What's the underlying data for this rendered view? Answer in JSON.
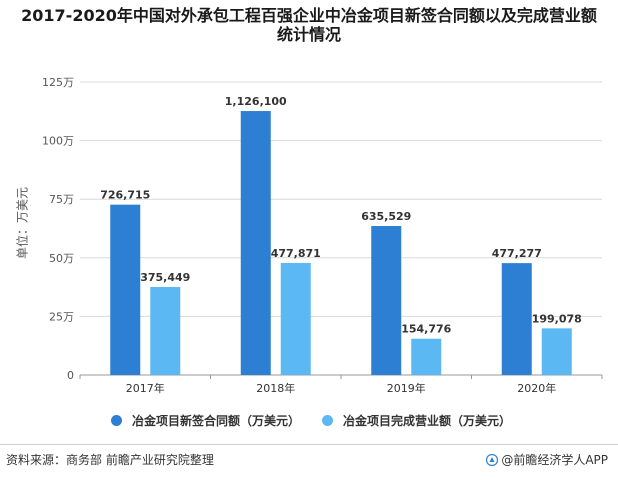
{
  "title_lines": [
    "2017-2020年中国对外承包工程百强企业中冶金项目新签合同额以及完成营业额",
    "统计情况"
  ],
  "chart_data": {
    "type": "bar",
    "title": "2017-2020年中国对外承包工程百强企业中冶金项目新签合同额以及完成营业额统计情况",
    "categories": [
      "2017年",
      "2018年",
      "2019年",
      "2020年"
    ],
    "series": [
      {
        "name": "冶金项目新签合同额（万美元）",
        "values": [
          726715,
          1126100,
          635529,
          477277
        ],
        "labels": [
          "726,715",
          "1,126,100",
          "635,529",
          "477,277"
        ],
        "color": "#2d7fd3"
      },
      {
        "name": "冶金项目完成营业额（万美元）",
        "values": [
          375449,
          477871,
          154776,
          199078
        ],
        "labels": [
          "375,449",
          "477,871",
          "154,776",
          "199,078"
        ],
        "color": "#5bb8f2"
      }
    ],
    "ylabel": "单位：万美元",
    "ylim": [
      0,
      1250000
    ],
    "yticks": [
      0,
      250000,
      500000,
      750000,
      1000000,
      1250000
    ],
    "ytick_labels": [
      "0",
      "25万",
      "50万",
      "75万",
      "100万",
      "125万"
    ],
    "grid": true,
    "legend": "bottom"
  },
  "footer": {
    "source": "资料来源：商务部 前瞻产业研究院整理",
    "brand": "@前瞻经济学人APP"
  }
}
